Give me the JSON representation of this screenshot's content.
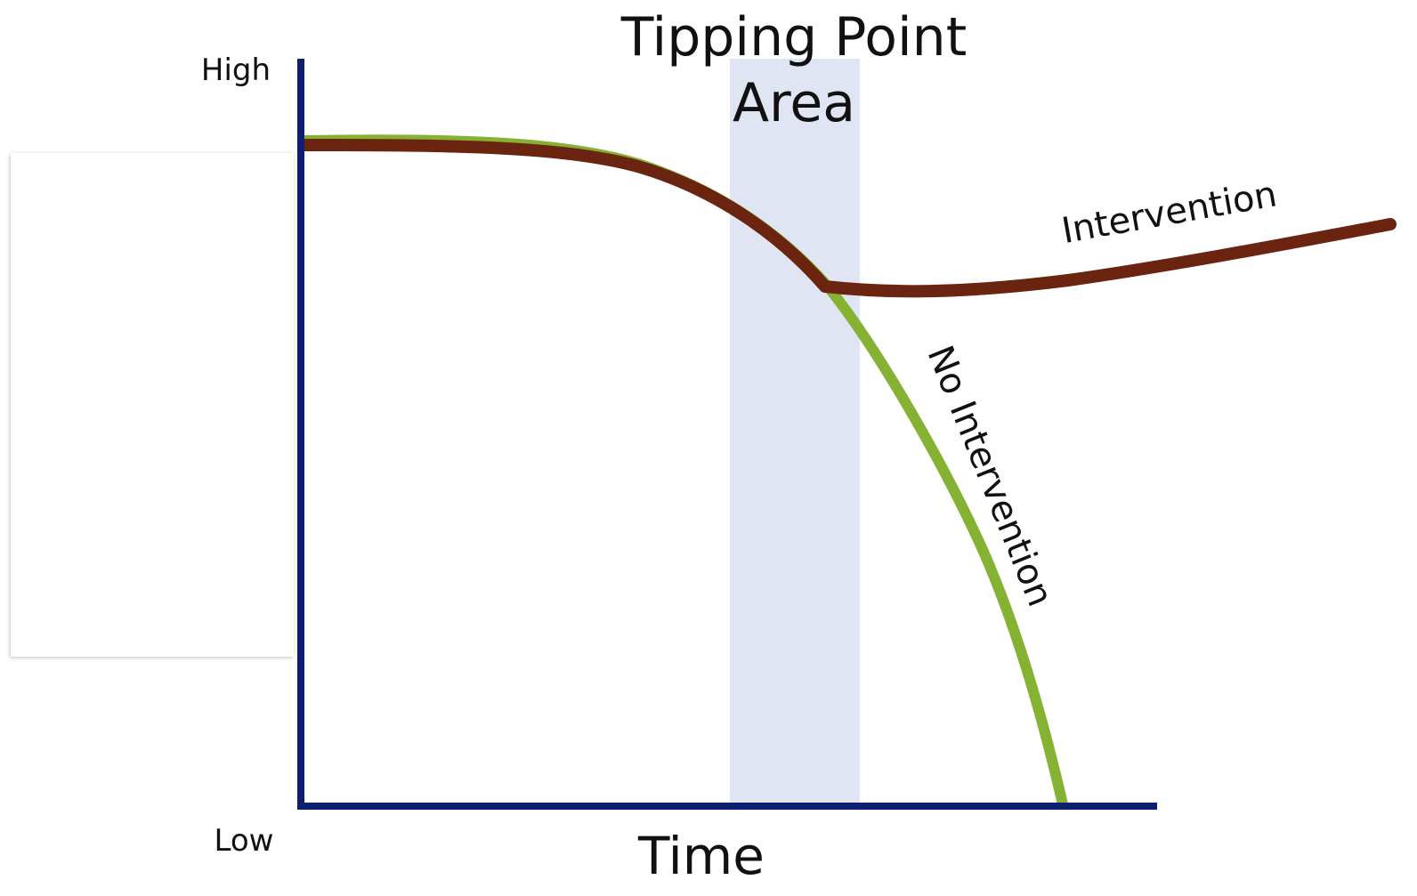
{
  "title_lines": [
    "Tipping Point",
    "Area"
  ],
  "y_axis": {
    "high_label": "High",
    "low_label": "Low"
  },
  "x_axis": {
    "label": "Time"
  },
  "curves": {
    "intervention": {
      "label": "Intervention",
      "color": "#6b2410"
    },
    "no_intervention": {
      "label": "No Intervention",
      "color": "#86b234"
    }
  },
  "colors": {
    "axis": "#0d1f6e",
    "tipping_band": "#dfe5f3"
  }
}
